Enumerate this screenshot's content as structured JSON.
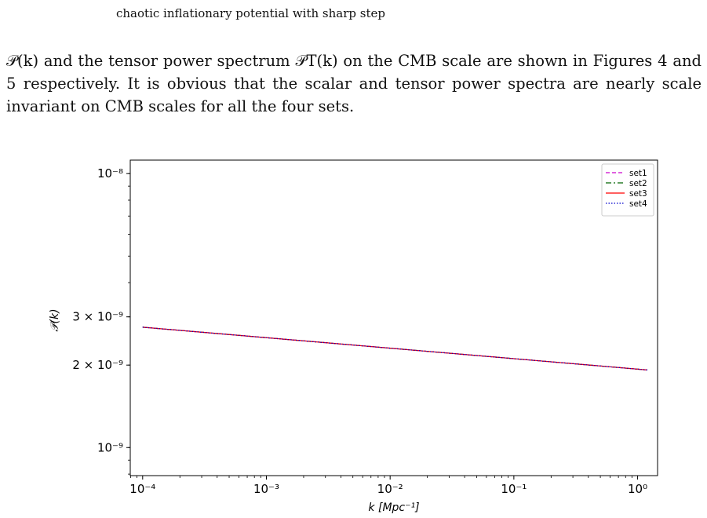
{
  "header": {
    "running_title": "chaotic inflationary potential with sharp step"
  },
  "paragraph": {
    "text": "𝒫(k) and the tensor power spectrum 𝒫T(k) on the CMB scale are shown in Figures 4 and 5 respectively. It is obvious that the scalar and tensor power spectra are nearly scale invariant on CMB scales for all the four sets."
  },
  "chart_data": {
    "type": "line",
    "title": "",
    "xlabel": "k [Mpc⁻¹]",
    "ylabel": "𝒫(k)",
    "xscale": "log",
    "yscale": "log",
    "xlim": [
      7.94e-05,
      1.45
    ],
    "ylim": [
      7.9e-10,
      1.12e-08
    ],
    "x_ticks": [
      {
        "value": 0.0001,
        "label": "10⁻⁴"
      },
      {
        "value": 0.001,
        "label": "10⁻³"
      },
      {
        "value": 0.01,
        "label": "10⁻²"
      },
      {
        "value": 0.1,
        "label": "10⁻¹"
      },
      {
        "value": 1,
        "label": "10⁰"
      }
    ],
    "y_ticks": [
      {
        "value": 1e-09,
        "label": "10⁻⁹"
      },
      {
        "value": 2e-09,
        "label": "2 × 10⁻⁹"
      },
      {
        "value": 3e-09,
        "label": "3 × 10⁻⁹"
      },
      {
        "value": 1e-08,
        "label": "10⁻⁸"
      }
    ],
    "legend_position": "top-right",
    "grid": false,
    "series": [
      {
        "name": "set1",
        "color": "#cc00cc",
        "dash": "dashed",
        "x": [
          0.0001,
          1.2
        ],
        "y": [
          2.75e-09,
          1.92e-09
        ]
      },
      {
        "name": "set2",
        "color": "#006400",
        "dash": "dashdot",
        "x": [
          0.0001,
          1.2
        ],
        "y": [
          2.75e-09,
          1.92e-09
        ]
      },
      {
        "name": "set3",
        "color": "#ff0000",
        "dash": "solid",
        "x": [
          0.0001,
          1.2
        ],
        "y": [
          2.75e-09,
          1.92e-09
        ]
      },
      {
        "name": "set4",
        "color": "#0000cc",
        "dash": "dotted",
        "x": [
          0.0001,
          1.2
        ],
        "y": [
          2.75e-09,
          1.92e-09
        ]
      }
    ]
  }
}
